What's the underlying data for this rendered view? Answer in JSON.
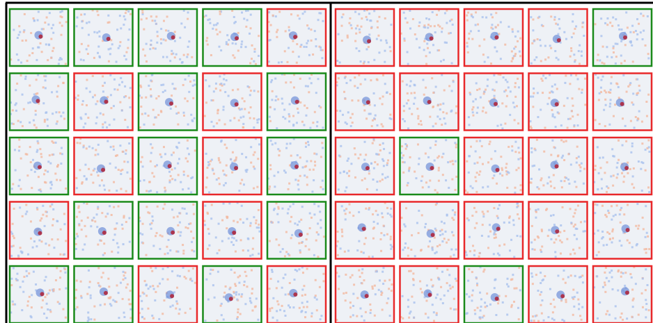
{
  "panels": [
    {
      "tiles": [
        [
          "#1a8a1a",
          "#1a8a1a",
          "#1a8a1a",
          "#1a8a1a",
          "#e8282a"
        ],
        [
          "#1a8a1a",
          "#e8282a",
          "#1a8a1a",
          "#e8282a",
          "#1a8a1a"
        ],
        [
          "#1a8a1a",
          "#e8282a",
          "#1a8a1a",
          "#e8282a",
          "#1a8a1a"
        ],
        [
          "#e8282a",
          "#1a8a1a",
          "#1a8a1a",
          "#e8282a",
          "#1a8a1a"
        ],
        [
          "#1a8a1a",
          "#1a8a1a",
          "#e8282a",
          "#1a8a1a",
          "#e8282a"
        ]
      ]
    },
    {
      "tiles": [
        [
          "#e8282a",
          "#e8282a",
          "#e8282a",
          "#e8282a",
          "#1a8a1a"
        ],
        [
          "#e8282a",
          "#e8282a",
          "#e8282a",
          "#e8282a",
          "#e8282a"
        ],
        [
          "#e8282a",
          "#1a8a1a",
          "#e8282a",
          "#e8282a",
          "#e8282a"
        ],
        [
          "#e8282a",
          "#e8282a",
          "#e8282a",
          "#e8282a",
          "#e8282a"
        ],
        [
          "#e8282a",
          "#e8282a",
          "#1a8a1a",
          "#e8282a",
          "#e8282a"
        ]
      ]
    }
  ]
}
